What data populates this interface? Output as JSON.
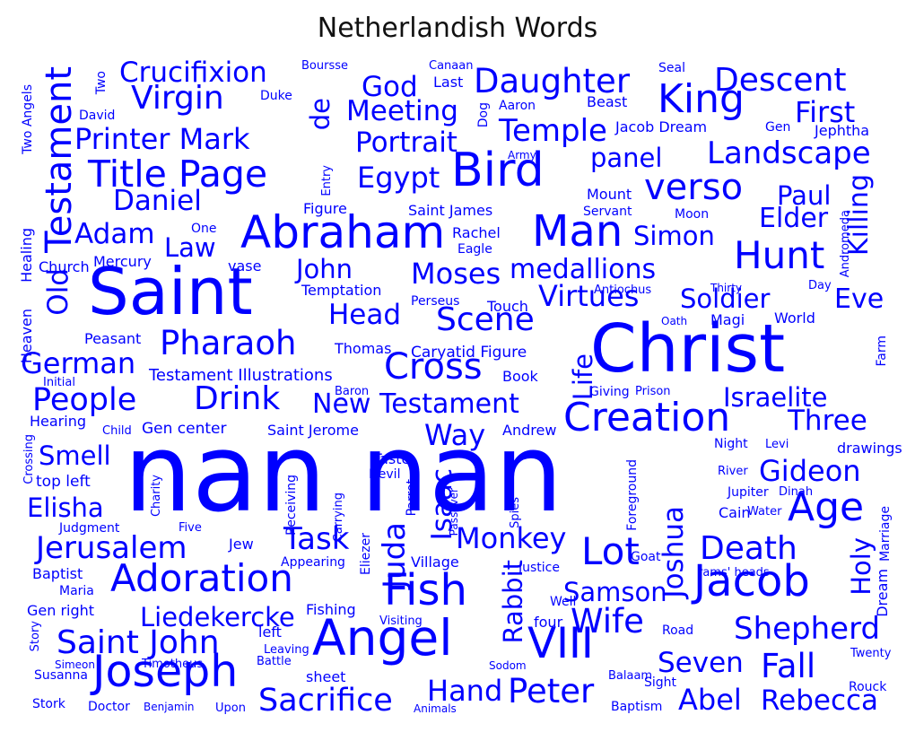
{
  "chart_data": {
    "type": "wordcloud",
    "title": "Netherlandish Words",
    "color": "#0000ff",
    "words": [
      {
        "text": "nan nan",
        "weight": 100
      },
      {
        "text": "Christ",
        "weight": 62
      },
      {
        "text": "Saint",
        "weight": 60
      },
      {
        "text": "Angel",
        "weight": 46
      },
      {
        "text": "Bird",
        "weight": 43
      },
      {
        "text": "Abraham",
        "weight": 42
      },
      {
        "text": "Joseph",
        "weight": 41
      },
      {
        "text": "Man",
        "weight": 40
      },
      {
        "text": "Jacob",
        "weight": 40
      },
      {
        "text": "Fish",
        "weight": 40
      },
      {
        "text": "VIII",
        "weight": 39
      },
      {
        "text": "Creation",
        "weight": 37
      },
      {
        "text": "Age",
        "weight": 37
      },
      {
        "text": "King",
        "weight": 37
      },
      {
        "text": "Adoration",
        "weight": 35
      },
      {
        "text": "Lot",
        "weight": 35
      },
      {
        "text": "Hunt",
        "weight": 35
      },
      {
        "text": "Title Page",
        "weight": 34
      },
      {
        "text": "Cross",
        "weight": 33
      },
      {
        "text": "verso",
        "weight": 33
      },
      {
        "text": "Testament",
        "weight": 33
      },
      {
        "text": "Daughter",
        "weight": 31
      },
      {
        "text": "Peter",
        "weight": 31
      },
      {
        "text": "Pharaoh",
        "weight": 31
      },
      {
        "text": "Fall",
        "weight": 31
      },
      {
        "text": "Wife",
        "weight": 31
      },
      {
        "text": "Virgin",
        "weight": 30
      },
      {
        "text": "Descent",
        "weight": 30
      },
      {
        "text": "Scene",
        "weight": 30
      },
      {
        "text": "Drink",
        "weight": 30
      },
      {
        "text": "Saint John",
        "weight": 30
      },
      {
        "text": "Death",
        "weight": 30
      },
      {
        "text": "Sacrifice",
        "weight": 29
      },
      {
        "text": "People",
        "weight": 29
      },
      {
        "text": "Jerusalem",
        "weight": 28
      },
      {
        "text": "Shepherd",
        "weight": 28
      },
      {
        "text": "Landscape",
        "weight": 28
      },
      {
        "text": "Temple",
        "weight": 28
      },
      {
        "text": "Task",
        "weight": 28
      },
      {
        "text": "Juda",
        "weight": 28
      },
      {
        "text": "Virtues",
        "weight": 27
      },
      {
        "text": "Printer Mark",
        "weight": 27
      },
      {
        "text": "Gideon",
        "weight": 27
      },
      {
        "text": "Egypt",
        "weight": 27
      },
      {
        "text": "First",
        "weight": 27
      },
      {
        "text": "German",
        "weight": 27
      },
      {
        "text": "Monkey",
        "weight": 27
      },
      {
        "text": "Moses",
        "weight": 27
      },
      {
        "text": "Way",
        "weight": 27
      },
      {
        "text": "Abel",
        "weight": 27
      },
      {
        "text": "Hand",
        "weight": 27
      },
      {
        "text": "Portrait",
        "weight": 26
      },
      {
        "text": "Joshua",
        "weight": 26
      },
      {
        "text": "Meeting",
        "weight": 26
      },
      {
        "text": "Isaac",
        "weight": 26
      },
      {
        "text": "God",
        "weight": 26
      },
      {
        "text": "Adam",
        "weight": 26
      },
      {
        "text": "Three",
        "weight": 26
      },
      {
        "text": "Crucifixion",
        "weight": 26
      },
      {
        "text": "Seven",
        "weight": 26
      },
      {
        "text": "Rebecca",
        "weight": 26
      },
      {
        "text": "Daniel",
        "weight": 26
      },
      {
        "text": "Head",
        "weight": 26
      },
      {
        "text": "Old",
        "weight": 26
      },
      {
        "text": "Elder",
        "weight": 25
      },
      {
        "text": "Eve",
        "weight": 25
      },
      {
        "text": "Killing",
        "weight": 25
      },
      {
        "text": "New Testament",
        "weight": 25
      },
      {
        "text": "medallions",
        "weight": 25
      },
      {
        "text": "Elisha",
        "weight": 24
      },
      {
        "text": "Holy",
        "weight": 24
      },
      {
        "text": "Rabbit",
        "weight": 24
      },
      {
        "text": "panel",
        "weight": 24
      },
      {
        "text": "Liedekercke",
        "weight": 24
      },
      {
        "text": "Samson",
        "weight": 24
      },
      {
        "text": "Israelite",
        "weight": 24
      },
      {
        "text": "Soldier",
        "weight": 24
      },
      {
        "text": "Paul",
        "weight": 24
      },
      {
        "text": "de",
        "weight": 24
      },
      {
        "text": "Simon",
        "weight": 24
      },
      {
        "text": "Law",
        "weight": 24
      },
      {
        "text": "John",
        "weight": 24
      },
      {
        "text": "Life",
        "weight": 24
      },
      {
        "text": "Smell",
        "weight": 24
      },
      {
        "text": "Susanna",
        "weight": 12
      },
      {
        "text": "Stork",
        "weight": 12
      },
      {
        "text": "Doctor",
        "weight": 12
      },
      {
        "text": "Upon",
        "weight": 11
      },
      {
        "text": "Benjamin",
        "weight": 10
      },
      {
        "text": "Animals",
        "weight": 10
      },
      {
        "text": "Baptism",
        "weight": 12
      },
      {
        "text": "Sight",
        "weight": 12
      },
      {
        "text": "Balaam",
        "weight": 11
      },
      {
        "text": "Rouck",
        "weight": 12
      },
      {
        "text": "Twenty",
        "weight": 11
      },
      {
        "text": "Road",
        "weight": 12
      },
      {
        "text": "Dream",
        "weight": 13
      },
      {
        "text": "Marriage",
        "weight": 12
      },
      {
        "text": "drawings",
        "weight": 13
      },
      {
        "text": "Night",
        "weight": 12
      },
      {
        "text": "Levi",
        "weight": 11
      },
      {
        "text": "River",
        "weight": 11
      },
      {
        "text": "Water",
        "weight": 11
      },
      {
        "text": "Jupiter",
        "weight": 12
      },
      {
        "text": "Dinah",
        "weight": 11
      },
      {
        "text": "Cain",
        "weight": 13
      },
      {
        "text": "Goat",
        "weight": 12
      },
      {
        "text": "rams' heads",
        "weight": 11
      },
      {
        "text": "Foreground",
        "weight": 12
      },
      {
        "text": "Justice",
        "weight": 12
      },
      {
        "text": "Well",
        "weight": 12
      },
      {
        "text": "four",
        "weight": 13
      },
      {
        "text": "Sodom",
        "weight": 10
      },
      {
        "text": "Village",
        "weight": 13
      },
      {
        "text": "Parrot",
        "weight": 12
      },
      {
        "text": "Passover",
        "weight": 10
      },
      {
        "text": "Spies",
        "weight": 11
      },
      {
        "text": "Visiting",
        "weight": 11
      },
      {
        "text": "Eliezer",
        "weight": 12
      },
      {
        "text": "Appearing",
        "weight": 12
      },
      {
        "text": "Carrying",
        "weight": 11
      },
      {
        "text": "Receiving",
        "weight": 12
      },
      {
        "text": "Fishing",
        "weight": 13
      },
      {
        "text": "Leaving",
        "weight": 11
      },
      {
        "text": "left",
        "weight": 13
      },
      {
        "text": "Battle",
        "weight": 11
      },
      {
        "text": "sheet",
        "weight": 13
      },
      {
        "text": "Timotheus",
        "weight": 11
      },
      {
        "text": "Simeon",
        "weight": 10
      },
      {
        "text": "Story",
        "weight": 11
      },
      {
        "text": "Gen right",
        "weight": 13
      },
      {
        "text": "Maria",
        "weight": 12
      },
      {
        "text": "Baptist",
        "weight": 13
      },
      {
        "text": "Judgment",
        "weight": 12
      },
      {
        "text": "Jew",
        "weight": 13
      },
      {
        "text": "Five",
        "weight": 11
      },
      {
        "text": "Charity",
        "weight": 11
      },
      {
        "text": "top left",
        "weight": 14
      },
      {
        "text": "Crossing",
        "weight": 11
      },
      {
        "text": "Hearing",
        "weight": 13
      },
      {
        "text": "Child",
        "weight": 11
      },
      {
        "text": "Gen center",
        "weight": 14
      },
      {
        "text": "Saint Jerome",
        "weight": 13
      },
      {
        "text": "Andrew",
        "weight": 13
      },
      {
        "text": "Taste",
        "weight": 13
      },
      {
        "text": "Devil",
        "weight": 12
      },
      {
        "text": "Initial",
        "weight": 11
      },
      {
        "text": "Baron",
        "weight": 11
      },
      {
        "text": "Testament Illustrations",
        "weight": 15
      },
      {
        "text": "Book",
        "weight": 13
      },
      {
        "text": "Giving",
        "weight": 12
      },
      {
        "text": "Prison",
        "weight": 11
      },
      {
        "text": "Thomas",
        "weight": 13
      },
      {
        "text": "Caryatid Figure",
        "weight": 14
      },
      {
        "text": "Peasant",
        "weight": 13
      },
      {
        "text": "Heaven",
        "weight": 13
      },
      {
        "text": "Healing",
        "weight": 13
      },
      {
        "text": "Touch",
        "weight": 13
      },
      {
        "text": "Magi",
        "weight": 13
      },
      {
        "text": "Oath",
        "weight": 10
      },
      {
        "text": "World",
        "weight": 13
      },
      {
        "text": "Farm",
        "weight": 12
      },
      {
        "text": "Day",
        "weight": 11
      },
      {
        "text": "Temptation",
        "weight": 13
      },
      {
        "text": "Perseus",
        "weight": 12
      },
      {
        "text": "Antiochus",
        "weight": 11
      },
      {
        "text": "Thirty",
        "weight": 10
      },
      {
        "text": "Andromeda",
        "weight": 11
      },
      {
        "text": "Church",
        "weight": 13
      },
      {
        "text": "Mercury",
        "weight": 13
      },
      {
        "text": "vase",
        "weight": 13
      },
      {
        "text": "Eagle",
        "weight": 12
      },
      {
        "text": "Rachel",
        "weight": 13
      },
      {
        "text": "Saint James",
        "weight": 13
      },
      {
        "text": "Servant",
        "weight": 12
      },
      {
        "text": "Moon",
        "weight": 12
      },
      {
        "text": "Mount",
        "weight": 13
      },
      {
        "text": "One",
        "weight": 12
      },
      {
        "text": "Figure",
        "weight": 13
      },
      {
        "text": "Entry",
        "weight": 11
      },
      {
        "text": "Two Angels",
        "weight": 12
      },
      {
        "text": "David",
        "weight": 12
      },
      {
        "text": "Duke",
        "weight": 12
      },
      {
        "text": "Dog",
        "weight": 12
      },
      {
        "text": "Aaron",
        "weight": 12
      },
      {
        "text": "Beast",
        "weight": 13
      },
      {
        "text": "Jacob Dream",
        "weight": 13
      },
      {
        "text": "Gen",
        "weight": 12
      },
      {
        "text": "Jephtha",
        "weight": 13
      },
      {
        "text": "Last",
        "weight": 13
      },
      {
        "text": "Canaan",
        "weight": 11
      },
      {
        "text": "Boursse",
        "weight": 11
      },
      {
        "text": "Seal",
        "weight": 12
      },
      {
        "text": "Army",
        "weight": 10
      },
      {
        "text": "Two",
        "weight": 12
      }
    ]
  }
}
